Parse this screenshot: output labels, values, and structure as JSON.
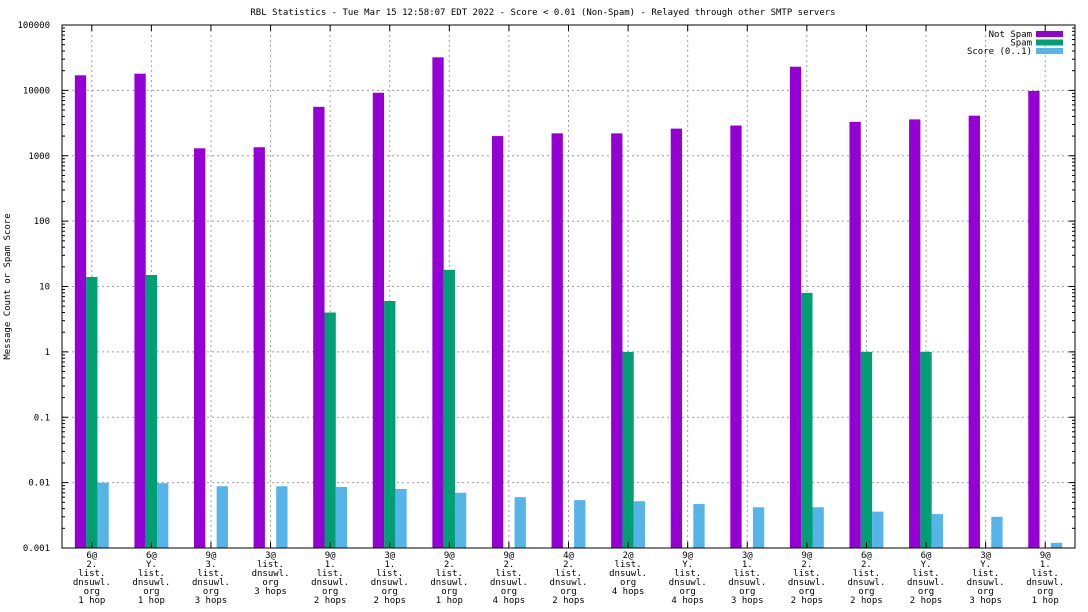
{
  "chart_data": {
    "type": "bar",
    "title": "RBL Statistics - Tue Mar 15 12:58:07 EDT 2022 - Score < 0.01 (Non-Spam) - Relayed through other SMTP servers",
    "ylabel": "Message Count or Spam Score",
    "xlabel": "",
    "yscale": "log",
    "ylim": [
      0.001,
      100000
    ],
    "grid": true,
    "legend_position": "top-right",
    "y_ticks": [
      {
        "value": 0.001,
        "label": "0.001"
      },
      {
        "value": 0.01,
        "label": "0.01"
      },
      {
        "value": 0.1,
        "label": "0.1"
      },
      {
        "value": 1,
        "label": "1"
      },
      {
        "value": 10,
        "label": "10"
      },
      {
        "value": 100,
        "label": "100"
      },
      {
        "value": 1000,
        "label": "1000"
      },
      {
        "value": 10000,
        "label": "10000"
      },
      {
        "value": 100000,
        "label": "100000"
      }
    ],
    "categories": [
      [
        "6@",
        "2.",
        "list.",
        "dnsuwl.",
        "org",
        "1 hop"
      ],
      [
        "6@",
        "Y.",
        "list.",
        "dnsuwl.",
        "org",
        "1 hop"
      ],
      [
        "9@",
        "3.",
        "list.",
        "dnsuwl.",
        "org",
        "3 hops"
      ],
      [
        "3@",
        "list.",
        "dnsuwl.",
        "org",
        "3 hops"
      ],
      [
        "9@",
        "1.",
        "list.",
        "dnsuwl.",
        "org",
        "2 hops"
      ],
      [
        "3@",
        "1.",
        "list.",
        "dnsuwl.",
        "org",
        "2 hops"
      ],
      [
        "9@",
        "2.",
        "list.",
        "dnsuwl.",
        "org",
        "1 hop"
      ],
      [
        "9@",
        "2.",
        "list.",
        "dnsuwl.",
        "org",
        "4 hops"
      ],
      [
        "4@",
        "2.",
        "list.",
        "dnsuwl.",
        "org",
        "2 hops"
      ],
      [
        "2@",
        "list.",
        "dnsuwl.",
        "org",
        "4 hops"
      ],
      [
        "9@",
        "Y.",
        "list.",
        "dnsuwl.",
        "org",
        "4 hops"
      ],
      [
        "3@",
        "1.",
        "list.",
        "dnsuwl.",
        "org",
        "3 hops"
      ],
      [
        "9@",
        "2.",
        "list.",
        "dnsuwl.",
        "org",
        "2 hops"
      ],
      [
        "6@",
        "2.",
        "list.",
        "dnsuwl.",
        "org",
        "2 hops"
      ],
      [
        "6@",
        "Y.",
        "list.",
        "dnsuwl.",
        "org",
        "2 hops"
      ],
      [
        "3@",
        "Y.",
        "list.",
        "dnsuwl.",
        "org",
        "3 hops"
      ],
      [
        "9@",
        "1.",
        "list.",
        "dnsuwl.",
        "org",
        "1 hop"
      ]
    ],
    "series": [
      {
        "name": "Not Spam",
        "color": "#9400d3",
        "values": [
          17000,
          18000,
          1300,
          1350,
          5600,
          9200,
          32000,
          2000,
          2200,
          2200,
          2600,
          2900,
          23000,
          3300,
          3600,
          4100,
          9800
        ]
      },
      {
        "name": "Spam",
        "color": "#009e73",
        "values": [
          14,
          15,
          null,
          null,
          4,
          6,
          18,
          null,
          null,
          1,
          null,
          null,
          8,
          1,
          1,
          null,
          null
        ]
      },
      {
        "name": "Score (0..1)",
        "color": "#56b4e9",
        "values": [
          0.01,
          0.0098,
          0.0088,
          0.0088,
          0.0086,
          0.008,
          0.007,
          0.006,
          0.0054,
          0.0052,
          0.0047,
          0.0042,
          0.0042,
          0.0036,
          0.0033,
          0.003,
          0.0012
        ]
      }
    ]
  }
}
